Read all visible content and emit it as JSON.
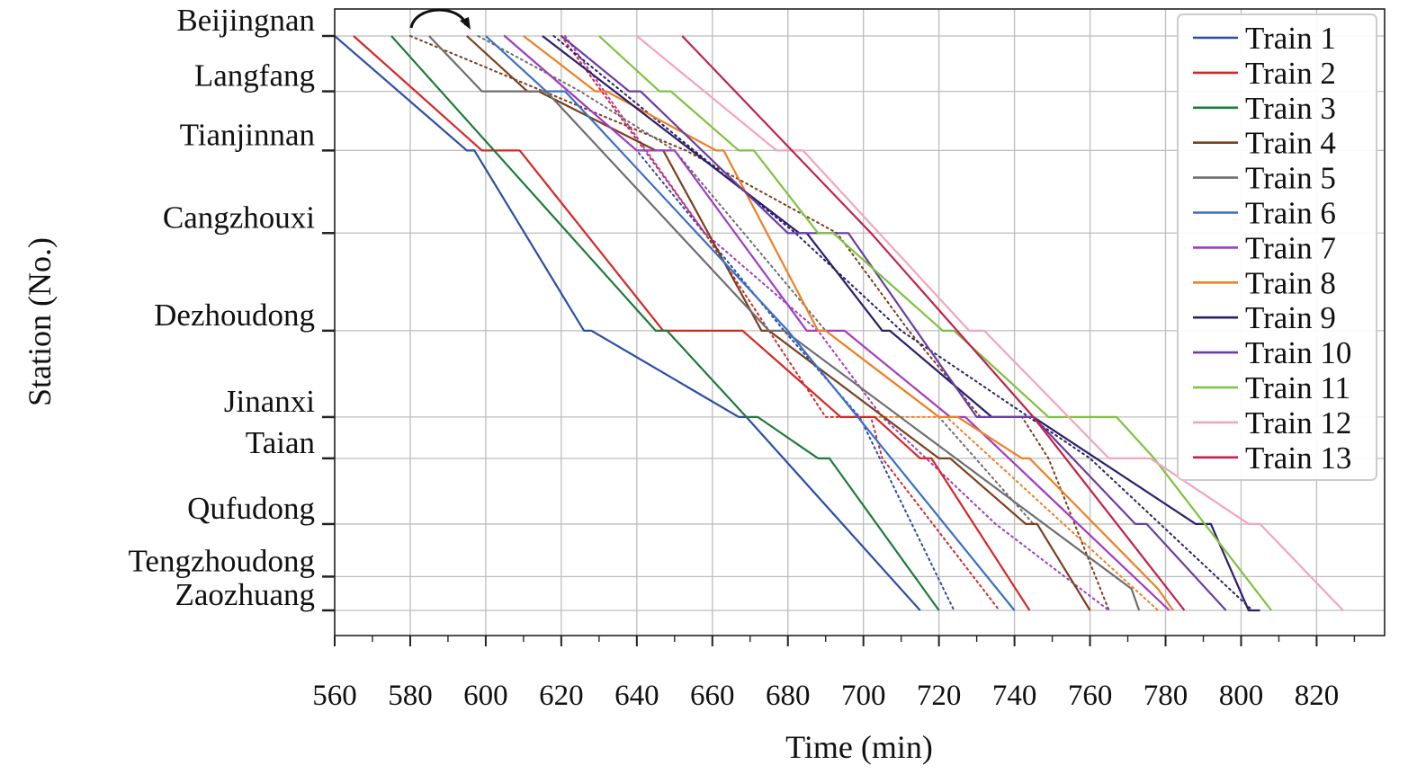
{
  "chart_data": {
    "type": "line",
    "title": "",
    "xlabel": "Time (min)",
    "ylabel": "Station (No.)",
    "xlim": [
      560,
      838
    ],
    "x_ticks": [
      560,
      580,
      600,
      620,
      640,
      660,
      680,
      700,
      720,
      740,
      760,
      780,
      800,
      820
    ],
    "grid": true,
    "legend_position": "top-right",
    "stations": [
      "Beijingnan",
      "Langfang",
      "Tianjinnan",
      "Cangzhouxi",
      "Dezhoudong",
      "Jinanxi",
      "Taian",
      "Qufudong",
      "Tengzhoudong",
      "Zaozhuang"
    ],
    "station_km": [
      0,
      59,
      122,
      210,
      314,
      406,
      450,
      520,
      576,
      612
    ],
    "series": [
      {
        "name": "Train 1",
        "color": "#2a4ea6",
        "x": [
          560,
          595,
          597,
          626,
          628,
          667,
          669,
          715
        ],
        "y": [
          0,
          122,
          122,
          314,
          314,
          406,
          406,
          612
        ]
      },
      {
        "name": "Train 2",
        "color": "#d62728",
        "x": [
          565,
          599,
          609,
          647,
          668,
          694,
          703,
          715,
          718,
          744
        ],
        "y": [
          0,
          122,
          122,
          314,
          314,
          406,
          406,
          450,
          450,
          612
        ]
      },
      {
        "name": "Train 3",
        "color": "#1f7a3a",
        "x": [
          575,
          645,
          648,
          669,
          672,
          688,
          691,
          720
        ],
        "y": [
          0,
          314,
          314,
          406,
          406,
          450,
          450,
          612
        ]
      },
      {
        "name": "Train 4",
        "color": "#7b3f1e",
        "x": [
          595,
          611,
          614,
          645,
          647,
          673,
          675,
          720,
          723,
          743,
          746,
          760
        ],
        "y": [
          0,
          59,
          59,
          122,
          122,
          314,
          314,
          450,
          450,
          520,
          520,
          612
        ]
      },
      {
        "name": "Train 5",
        "color": "#6e6e6e",
        "x": [
          585,
          599,
          616,
          675,
          679,
          771,
          773
        ],
        "y": [
          0,
          59,
          59,
          314,
          314,
          589,
          612
        ]
      },
      {
        "name": "Train 6",
        "color": "#3a6fc4",
        "x": [
          600,
          616,
          621,
          680,
          740
        ],
        "y": [
          0,
          59,
          59,
          314,
          612
        ]
      },
      {
        "name": "Train 7",
        "color": "#a23cc0",
        "x": [
          605,
          640,
          650,
          685,
          695,
          723,
          727,
          781
        ],
        "y": [
          0,
          122,
          122,
          314,
          314,
          406,
          406,
          612
        ]
      },
      {
        "name": "Train 8",
        "color": "#ee7f22",
        "x": [
          610,
          629,
          632,
          661,
          663,
          688,
          690,
          720,
          725,
          742,
          744,
          778,
          782
        ],
        "y": [
          0,
          59,
          59,
          122,
          122,
          314,
          314,
          406,
          406,
          450,
          450,
          589,
          612
        ]
      },
      {
        "name": "Train 9",
        "color": "#2b1f6b",
        "x": [
          615,
          683,
          685,
          705,
          707,
          734,
          745,
          788,
          792,
          802,
          805
        ],
        "y": [
          0,
          210,
          210,
          314,
          314,
          406,
          406,
          520,
          520,
          612,
          612
        ]
      },
      {
        "name": "Train 10",
        "color": "#6a3ea1",
        "x": [
          620,
          638,
          641,
          680,
          696,
          730,
          745,
          772,
          775,
          796
        ],
        "y": [
          0,
          59,
          59,
          210,
          210,
          406,
          406,
          520,
          520,
          612
        ]
      },
      {
        "name": "Train 11",
        "color": "#7fc241",
        "x": [
          630,
          646,
          649,
          667,
          671,
          688,
          692,
          721,
          724,
          749,
          767,
          777,
          808
        ],
        "y": [
          0,
          59,
          59,
          122,
          122,
          210,
          210,
          314,
          314,
          406,
          406,
          450,
          612
        ]
      },
      {
        "name": "Train 12",
        "color": "#f4a4bf",
        "x": [
          640,
          677,
          684,
          728,
          732,
          765,
          776,
          802,
          805,
          827
        ],
        "y": [
          0,
          122,
          122,
          314,
          314,
          450,
          450,
          520,
          520,
          612
        ]
      },
      {
        "name": "Train 13",
        "color": "#c0224a",
        "x": [
          652,
          702,
          745,
          785
        ],
        "y": [
          0,
          210,
          406,
          612
        ]
      }
    ],
    "dotted_series": [
      {
        "color": "#7b3f1e",
        "x": [
          580,
          653,
          693,
          712,
          731,
          742,
          749,
          765
        ],
        "y": [
          0,
          122,
          210,
          314,
          406,
          406,
          450,
          612
        ]
      },
      {
        "color": "#2a4ea6",
        "x": [
          605,
          640,
          679,
          699,
          724
        ],
        "y": [
          0,
          122,
          314,
          406,
          612
        ]
      },
      {
        "color": "#d62728",
        "x": [
          620,
          658,
          690,
          702,
          705,
          736
        ],
        "y": [
          0,
          210,
          406,
          406,
          450,
          612
        ]
      },
      {
        "color": "#a23cc0",
        "x": [
          621,
          658,
          688,
          705,
          735,
          765
        ],
        "y": [
          0,
          210,
          314,
          406,
          520,
          612
        ]
      },
      {
        "color": "#ee7f22",
        "x": [
          700,
          722,
          778
        ],
        "y": [
          406,
          406,
          612
        ]
      },
      {
        "color": "#2b1f6b",
        "x": [
          618,
          682,
          710,
          760,
          803
        ],
        "y": [
          0,
          210,
          314,
          450,
          612
        ]
      },
      {
        "color": "#6e6e6e",
        "x": [
          598,
          625,
          650,
          690,
          720,
          745
        ],
        "y": [
          0,
          59,
          122,
          314,
          406,
          520
        ]
      }
    ],
    "annotations": [
      {
        "type": "curved-arrow",
        "x": [
          581,
          594
        ],
        "y": [
          0,
          0
        ]
      }
    ]
  }
}
